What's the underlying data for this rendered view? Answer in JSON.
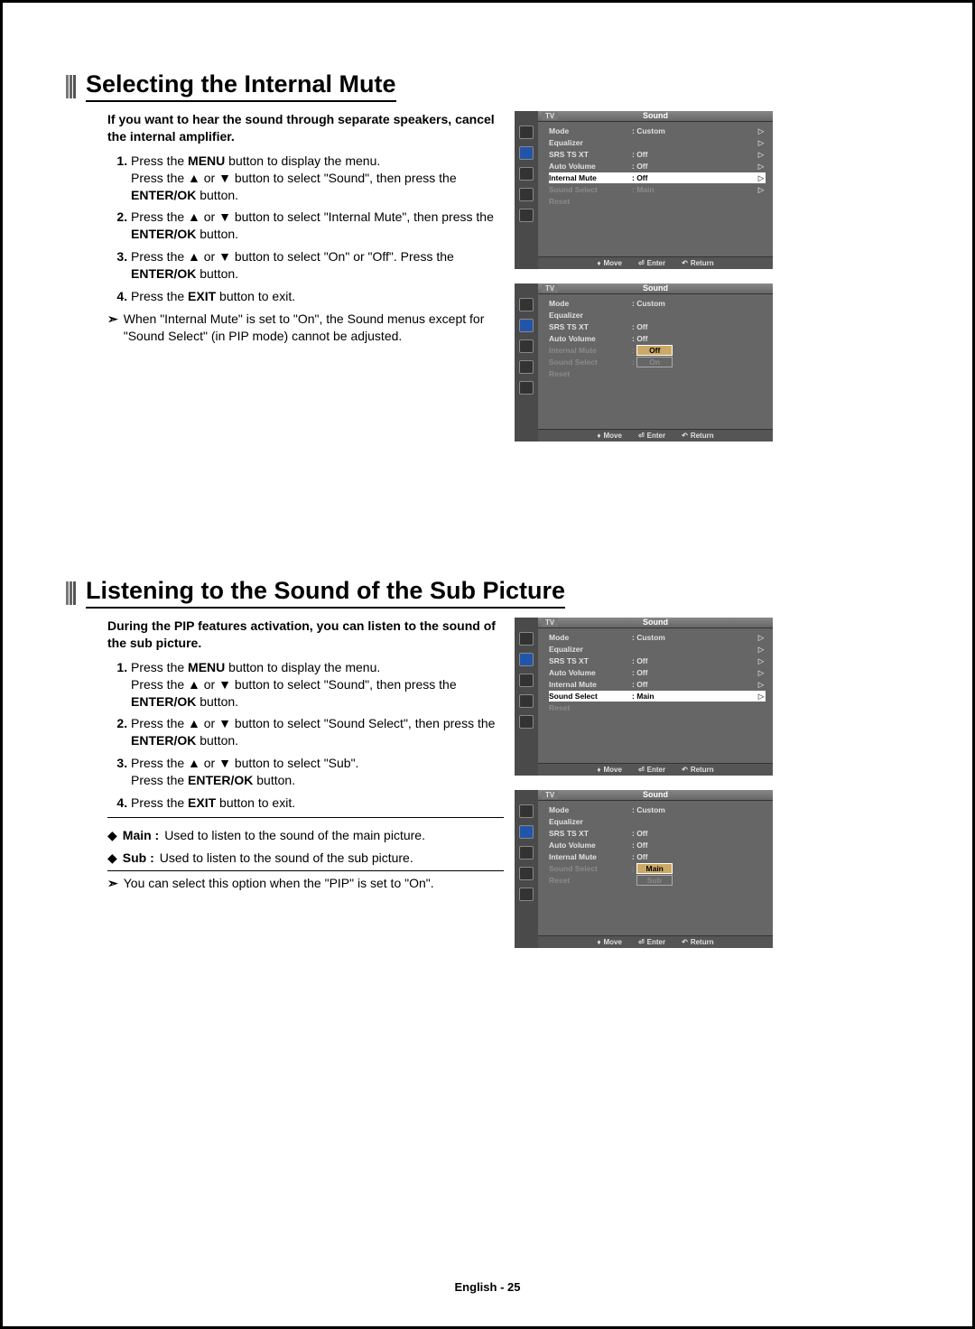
{
  "page_footer": "English - 25",
  "glyphs": {
    "up": "▲",
    "down": "▼",
    "updown": "♦",
    "enter": "⏎",
    "return": "↶",
    "note": "➣",
    "bullet": "◆",
    "tri": "▷"
  },
  "osd_common": {
    "tv": "TV",
    "title": "Sound",
    "foot_move": "Move",
    "foot_enter": "Enter",
    "foot_return": "Return"
  },
  "osd": {
    "rows_labels": {
      "mode": "Mode",
      "equalizer": "Equalizer",
      "srs": "SRS TS XT",
      "auto": "Auto Volume",
      "internal": "Internal Mute",
      "select": "Sound Select",
      "reset": "Reset"
    },
    "vals": {
      "custom": ": Custom",
      "off": ": Off",
      "main": ": Main"
    },
    "opts": {
      "off": "Off",
      "on": "On",
      "main": "Main",
      "sub": "Sub"
    }
  },
  "sec1": {
    "title": "Selecting the Internal Mute",
    "intro": "If you want to hear the sound through separate speakers, cancel the internal amplifier.",
    "s1a": "Press the ",
    "s1b": "MENU",
    "s1c": " button to display the menu.",
    "s1d": "Press the ▲ or ▼ button to select \"Sound\", then press the ",
    "s1e": "ENTER/OK",
    "s1f": " button.",
    "s2a": "Press the ▲ or ▼ button to select \"Internal Mute\", then press the ",
    "s2b": "ENTER/OK",
    "s2c": " button.",
    "s3a": "Press the ▲ or ▼ button to select \"On\" or \"Off\". Press the ",
    "s3b": "ENTER/OK",
    "s3c": " button.",
    "s4a": "Press the ",
    "s4b": "EXIT",
    "s4c": " button to exit.",
    "note": "When \"Internal Mute\" is set to \"On\", the Sound menus except for \"Sound Select\" (in PIP mode) cannot be adjusted."
  },
  "sec2": {
    "title": "Listening to the Sound of the Sub Picture",
    "intro": "During the PIP features activation, you can listen to the sound of the sub picture.",
    "s1a": "Press the ",
    "s1b": "MENU",
    "s1c": " button to display the menu.",
    "s1d": "Press the ▲ or ▼ button to select \"Sound\", then press the ",
    "s1e": "ENTER/OK",
    "s1f": " button.",
    "s2a": "Press the ▲ or ▼ button to select \"Sound Select\", then press the ",
    "s2b": "ENTER/OK",
    "s2c": " button.",
    "s3a": "Press the ▲ or ▼ button to select \"Sub\".",
    "s3b": "Press the ",
    "s3c": "ENTER/OK",
    "s3d": " button.",
    "s4a": "Press the ",
    "s4b": "EXIT",
    "s4c": " button to exit.",
    "def_main_l": "Main :",
    "def_main_t": " Used to listen to the sound of the main picture.",
    "def_sub_l": "Sub :",
    "def_sub_t": "  Used to listen to the sound of the sub picture.",
    "note2": "You can select this option when the \"PIP\" is set to \"On\"."
  }
}
